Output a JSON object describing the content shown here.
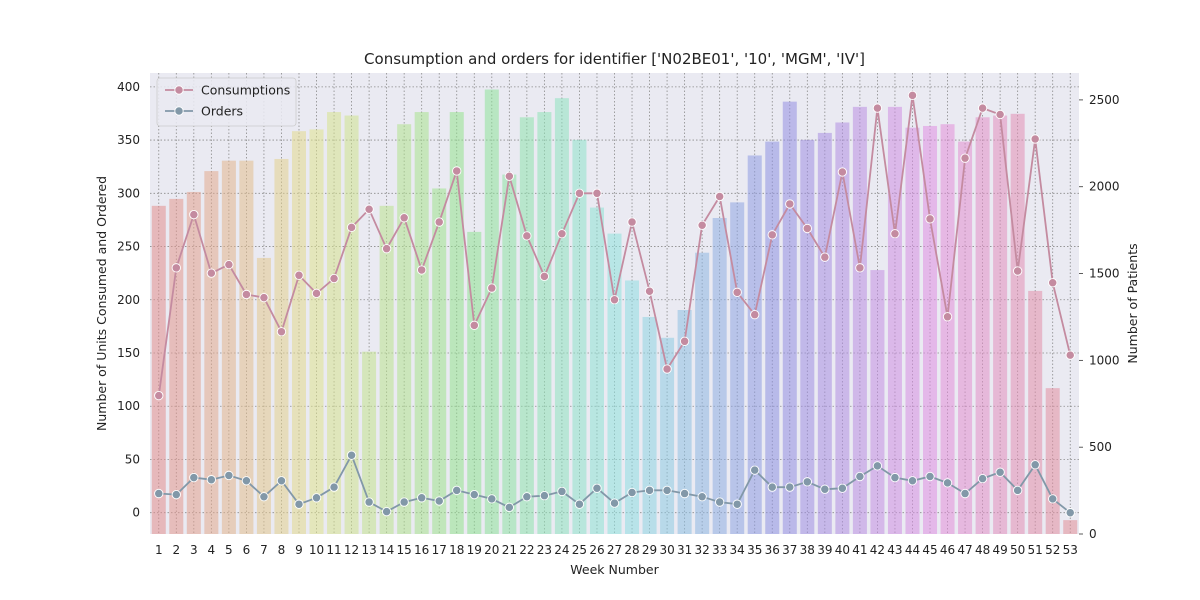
{
  "chart_data": {
    "type": "bar",
    "title": "Consumption and orders for identifier ['N02BE01', '10', 'MGM', 'IV']",
    "xlabel": "Week Number",
    "ylabel": "Number of Units Consumed and Ordered",
    "y2label": "Number of Patients",
    "ylim": [
      -20,
      413
    ],
    "y2lim": [
      0,
      2655
    ],
    "yticks": [
      0,
      50,
      100,
      150,
      200,
      250,
      300,
      350,
      400
    ],
    "y2ticks": [
      0,
      500,
      1000,
      1500,
      2000,
      2500
    ],
    "grid": true,
    "legend_position": "top-left",
    "categories": [
      "1",
      "2",
      "3",
      "4",
      "5",
      "6",
      "7",
      "8",
      "9",
      "10",
      "11",
      "12",
      "13",
      "14",
      "15",
      "16",
      "17",
      "18",
      "19",
      "20",
      "21",
      "22",
      "23",
      "24",
      "25",
      "26",
      "27",
      "28",
      "29",
      "30",
      "31",
      "32",
      "33",
      "34",
      "35",
      "36",
      "37",
      "38",
      "39",
      "40",
      "41",
      "42",
      "43",
      "44",
      "45",
      "46",
      "47",
      "48",
      "49",
      "50",
      "51",
      "52",
      "53"
    ],
    "bars": {
      "axis": "right",
      "values": [
        1890,
        1930,
        1970,
        2090,
        2150,
        2150,
        1590,
        2160,
        2320,
        2330,
        2430,
        2410,
        1050,
        1890,
        2360,
        2430,
        1990,
        2430,
        1740,
        2560,
        2070,
        2400,
        2430,
        2510,
        2270,
        1880,
        1730,
        1460,
        1250,
        1130,
        1290,
        1620,
        1820,
        1910,
        2180,
        2260,
        2490,
        2270,
        2310,
        2370,
        2460,
        1520,
        2460,
        2340,
        2350,
        2360,
        2260,
        2400,
        2410,
        2420,
        1400,
        840,
        80
      ]
    },
    "series": [
      {
        "name": "Consumptions",
        "axis": "left",
        "color": "#c48ba0",
        "values": [
          110,
          230,
          280,
          225,
          233,
          205,
          202,
          170,
          223,
          206,
          220,
          268,
          285,
          248,
          277,
          228,
          273,
          321,
          176,
          211,
          316,
          260,
          222,
          262,
          300,
          300,
          200,
          273,
          208,
          135,
          161,
          270,
          297,
          207,
          186,
          261,
          290,
          267,
          240,
          320,
          230,
          380,
          262,
          392,
          276,
          184,
          333,
          380,
          374,
          227,
          351,
          216,
          148
        ]
      },
      {
        "name": "Orders",
        "axis": "left",
        "color": "#8298a8",
        "values": [
          18,
          17,
          33,
          31,
          35,
          30,
          15,
          30,
          8,
          14,
          24,
          54,
          10,
          1,
          10,
          14,
          11,
          21,
          17,
          13,
          5,
          15,
          16,
          20,
          8,
          23,
          9,
          19,
          21,
          21,
          18,
          15,
          10,
          8,
          40,
          24,
          24,
          29,
          22,
          23,
          34,
          44,
          33,
          30,
          34,
          28,
          18,
          32,
          38,
          21,
          45,
          13,
          0
        ]
      }
    ]
  }
}
